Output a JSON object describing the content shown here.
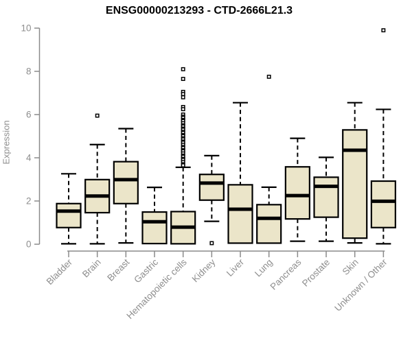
{
  "chart_data": {
    "type": "boxplot",
    "title": "ENSG00000213293 - CTD-2666L21.3",
    "ylabel": "Expression",
    "xlabel": "",
    "ylim": [
      0,
      10
    ],
    "yticks": [
      0,
      2,
      4,
      6,
      8,
      10
    ],
    "grid": false,
    "legend": false,
    "categories": [
      "Bladder",
      "Brain",
      "Breast",
      "Gastric",
      "Hematopoietic cells",
      "Kidney",
      "Liver",
      "Lung",
      "Pancreas",
      "Prostate",
      "Skin",
      "Unknown / Other"
    ],
    "series": [
      {
        "category": "Bladder",
        "low": 0.02,
        "q1": 0.77,
        "median": 1.53,
        "q3": 1.88,
        "high": 3.26,
        "outliers": []
      },
      {
        "category": "Brain",
        "low": 0.02,
        "q1": 1.46,
        "median": 2.23,
        "q3": 2.99,
        "high": 4.61,
        "outliers": [
          5.95
        ]
      },
      {
        "category": "Breast",
        "low": 0.06,
        "q1": 1.88,
        "median": 2.99,
        "q3": 3.82,
        "high": 5.35,
        "outliers": []
      },
      {
        "category": "Gastric",
        "low": 0.03,
        "q1": 0.03,
        "median": 1.04,
        "q3": 1.49,
        "high": 2.63,
        "outliers": []
      },
      {
        "category": "Hematopoietic cells",
        "low": 0.02,
        "q1": 0.02,
        "median": 0.79,
        "q3": 1.51,
        "high": 3.56,
        "outliers": [
          8.1,
          7.65,
          7.05,
          6.95,
          6.8,
          6.35,
          6.25,
          6.0,
          5.9,
          5.85,
          5.75,
          5.7,
          5.6,
          5.5,
          5.45,
          5.35,
          5.3,
          5.2,
          5.15,
          5.05,
          5.0,
          4.9,
          4.85,
          4.75,
          4.7,
          4.6,
          4.5,
          4.45,
          4.35,
          4.3,
          4.2,
          4.1,
          4.05,
          3.95,
          3.9,
          3.8,
          3.7,
          3.65
        ]
      },
      {
        "category": "Kidney",
        "low": 1.06,
        "q1": 2.04,
        "median": 2.83,
        "q3": 3.23,
        "high": 4.1,
        "outliers": [
          0.05
        ]
      },
      {
        "category": "Liver",
        "low": 0.05,
        "q1": 0.05,
        "median": 1.62,
        "q3": 2.75,
        "high": 6.55,
        "outliers": []
      },
      {
        "category": "Lung",
        "low": 0.05,
        "q1": 0.05,
        "median": 1.2,
        "q3": 1.83,
        "high": 2.64,
        "outliers": [
          7.75
        ]
      },
      {
        "category": "Pancreas",
        "low": 0.14,
        "q1": 1.17,
        "median": 2.25,
        "q3": 3.58,
        "high": 4.9,
        "outliers": []
      },
      {
        "category": "Prostate",
        "low": 0.14,
        "q1": 1.25,
        "median": 2.68,
        "q3": 3.1,
        "high": 4.02,
        "outliers": []
      },
      {
        "category": "Skin",
        "low": 0.06,
        "q1": 0.28,
        "median": 4.35,
        "q3": 5.29,
        "high": 6.55,
        "outliers": []
      },
      {
        "category": "Unknown / Other",
        "low": 0.02,
        "q1": 0.77,
        "median": 1.99,
        "q3": 2.92,
        "high": 6.24,
        "outliers": [
          9.9
        ]
      }
    ],
    "colors": {
      "box_fill": "#EBE5C9",
      "box_stroke": "#000000",
      "median": "#000000",
      "whisker": "#000000",
      "outlier_stroke": "#000000",
      "outlier_fill": "#FFFFFF",
      "axis": "#8A8A8A",
      "tick_label": "#8E8E8E",
      "title": "#000000",
      "background": "#FFFFFF"
    }
  }
}
